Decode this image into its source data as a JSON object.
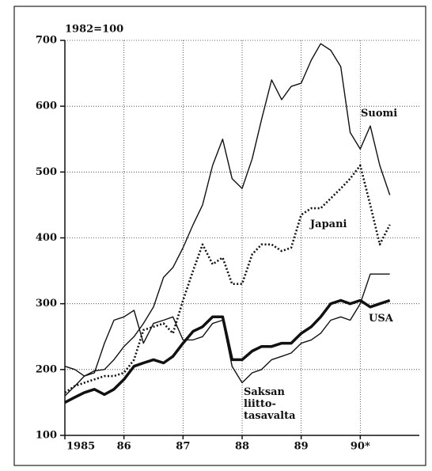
{
  "chart_data": {
    "type": "line",
    "subtitle": "1982=100",
    "x": [
      1985.0,
      1985.17,
      1985.33,
      1985.5,
      1985.67,
      1985.83,
      1986.0,
      1986.17,
      1986.33,
      1986.5,
      1986.67,
      1986.83,
      1987.0,
      1987.17,
      1987.33,
      1987.5,
      1987.67,
      1987.83,
      1988.0,
      1988.17,
      1988.33,
      1988.5,
      1988.67,
      1988.83,
      1989.0,
      1989.17,
      1989.33,
      1989.5,
      1989.67,
      1989.83,
      1990.0,
      1990.17,
      1990.33,
      1990.5
    ],
    "series": [
      {
        "name": "Suomi",
        "color": "#111111",
        "style": "thin",
        "values": [
          205,
          200,
          190,
          198,
          200,
          215,
          235,
          250,
          270,
          295,
          340,
          355,
          385,
          420,
          450,
          510,
          550,
          490,
          475,
          520,
          580,
          640,
          610,
          630,
          635,
          670,
          695,
          685,
          660,
          560,
          535,
          570,
          510,
          465
        ]
      },
      {
        "name": "Japani",
        "color": "#111111",
        "style": "dotted",
        "values": [
          165,
          175,
          180,
          185,
          190,
          190,
          195,
          215,
          260,
          265,
          270,
          255,
          305,
          350,
          390,
          360,
          370,
          330,
          330,
          375,
          390,
          390,
          380,
          385,
          435,
          445,
          445,
          460,
          475,
          490,
          510,
          450,
          390,
          420
        ]
      },
      {
        "name": "USA",
        "color": "#111111",
        "style": "thick",
        "values": [
          150,
          158,
          165,
          170,
          162,
          170,
          185,
          205,
          210,
          215,
          210,
          220,
          240,
          258,
          265,
          280,
          280,
          215,
          215,
          228,
          235,
          235,
          240,
          240,
          255,
          265,
          280,
          300,
          305,
          300,
          305,
          295,
          300,
          305
        ]
      },
      {
        "name": "Saksan\nliitto-\ntasavalta",
        "color": "#111111",
        "style": "thin",
        "values": [
          160,
          175,
          190,
          195,
          240,
          275,
          280,
          290,
          240,
          270,
          275,
          280,
          245,
          245,
          250,
          270,
          275,
          205,
          180,
          195,
          200,
          215,
          220,
          225,
          240,
          245,
          255,
          275,
          280,
          275,
          300,
          345,
          345,
          345
        ]
      }
    ],
    "xlim": [
      1985,
      1991
    ],
    "xticks": [
      {
        "value": 1985,
        "label": "1985"
      },
      {
        "value": 1986,
        "label": "86"
      },
      {
        "value": 1987,
        "label": "87"
      },
      {
        "value": 1988,
        "label": "88"
      },
      {
        "value": 1989,
        "label": "89"
      },
      {
        "value": 1990,
        "label": "90*"
      }
    ],
    "ylim": [
      100,
      700
    ],
    "yticks": [
      100,
      200,
      300,
      400,
      500,
      600,
      700
    ],
    "grid": true
  }
}
